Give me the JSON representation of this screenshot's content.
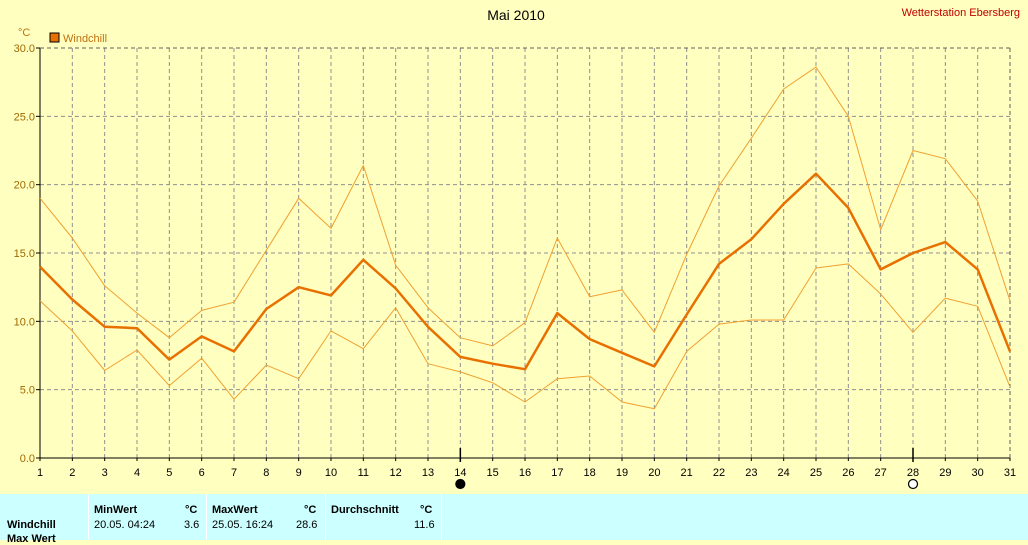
{
  "colors": {
    "background": "#ffffc0",
    "line": "#e87000",
    "thin_line": "#f0a030",
    "grid": "#909090",
    "station": "#c00000",
    "stats_bg": "#ccffff"
  },
  "header": {
    "title": "Mai 2010",
    "station": "Wetterstation Ebersberg",
    "unit": "°C"
  },
  "chart_data": {
    "type": "line",
    "title": "Mai 2010",
    "ylabel": "°C",
    "xlim": [
      1,
      31
    ],
    "ylim": [
      0,
      30
    ],
    "grid": true,
    "legend_position": "top-left",
    "x": [
      1,
      2,
      3,
      4,
      5,
      6,
      7,
      8,
      9,
      10,
      11,
      12,
      13,
      14,
      15,
      16,
      17,
      18,
      19,
      20,
      21,
      22,
      23,
      24,
      25,
      26,
      27,
      28,
      29,
      30,
      31
    ],
    "x_tick_labels": [
      "1",
      "2",
      "3",
      "4",
      "5",
      "6",
      "7",
      "8",
      "9",
      "10",
      "11",
      "12",
      "13",
      "14",
      "15",
      "16",
      "17",
      "18",
      "19",
      "20",
      "21",
      "22",
      "23",
      "24",
      "25",
      "26",
      "27",
      "28",
      "29",
      "30",
      "31"
    ],
    "y_tick_labels": [
      "0.0",
      "5.0",
      "10.0",
      "15.0",
      "20.0",
      "25.0",
      "30.0"
    ],
    "y_ticks": [
      0,
      5,
      10,
      15,
      20,
      25,
      30
    ],
    "series": [
      {
        "name": "Windchill",
        "role": "mean",
        "values": [
          14.0,
          11.6,
          9.6,
          9.5,
          7.2,
          8.9,
          7.8,
          10.9,
          12.5,
          11.9,
          14.5,
          12.4,
          9.6,
          7.4,
          6.9,
          6.5,
          10.6,
          8.7,
          7.7,
          6.7,
          10.5,
          14.2,
          16.0,
          18.6,
          20.8,
          18.3,
          13.8,
          15.0,
          15.8,
          13.8,
          7.8
        ]
      },
      {
        "role": "max",
        "values": [
          19.0,
          16.1,
          12.6,
          10.6,
          8.8,
          10.8,
          11.4,
          15.2,
          19.0,
          16.8,
          21.4,
          14.1,
          11.0,
          8.8,
          8.2,
          9.9,
          16.1,
          11.8,
          12.3,
          9.2,
          14.9,
          19.9,
          23.4,
          27.0,
          28.6,
          25.0,
          16.7,
          22.5,
          21.9,
          18.8,
          11.5
        ]
      },
      {
        "role": "min",
        "values": [
          11.5,
          9.3,
          6.4,
          7.9,
          5.3,
          7.3,
          4.3,
          6.8,
          5.8,
          9.3,
          8.0,
          11.0,
          6.9,
          6.3,
          5.5,
          4.1,
          5.8,
          6.0,
          4.1,
          3.6,
          7.8,
          9.8,
          10.1,
          10.1,
          13.9,
          14.2,
          12.0,
          9.2,
          11.7,
          11.1,
          5.2
        ]
      }
    ],
    "markers": [
      {
        "x": 14,
        "style": "filled"
      },
      {
        "x": 28,
        "style": "open"
      }
    ]
  },
  "stats": {
    "headers": {
      "min": "MinWert",
      "max": "MaxWert",
      "avg": "Durchschnitt",
      "unit": "°C"
    },
    "rows": [
      {
        "label": "Windchill",
        "min_time": "20.05.  04:24",
        "min_value": "3.6",
        "max_time": "25.05.  16:24",
        "max_value": "28.6",
        "avg_value": "11.6"
      }
    ],
    "partial_row_label": "Max Wert"
  }
}
